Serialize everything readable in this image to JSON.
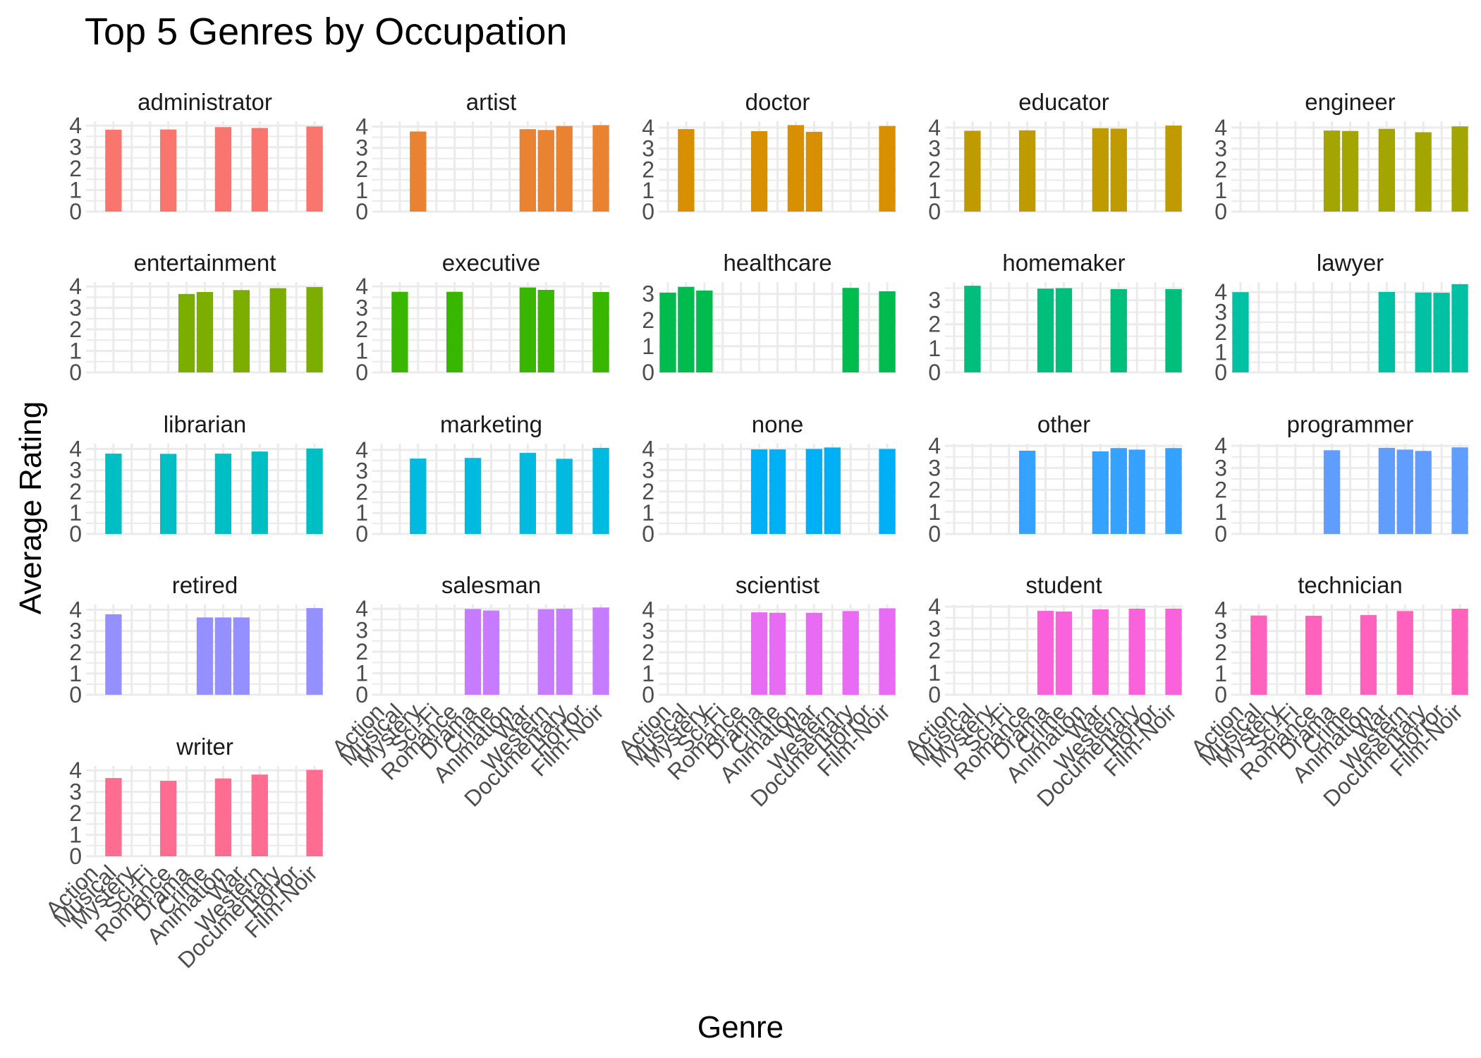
{
  "chart_data": {
    "type": "bar",
    "title": "Top 5 Genres by Occupation",
    "xlabel": "Genre",
    "ylabel": "Average Rating",
    "categories": [
      "Action",
      "Musical",
      "Mystery",
      "Sci-Fi",
      "Romance",
      "Drama",
      "Crime",
      "Animation",
      "War",
      "Western",
      "Documentary",
      "Horror",
      "Film-Noir"
    ],
    "grid": true,
    "legend": "none",
    "layout": {
      "columns": 5
    },
    "panels": [
      {
        "name": "administrator",
        "color": "#F8766D",
        "ylim": [
          0,
          4.2
        ],
        "ticks": [
          0,
          1,
          2,
          3,
          4
        ],
        "values": {
          "Musical": 3.81,
          "Romance": 3.82,
          "Animation": 3.93,
          "Western": 3.89,
          "Film-Noir": 3.96
        }
      },
      {
        "name": "artist",
        "color": "#EA8331",
        "ylim": [
          0,
          4.25
        ],
        "ticks": [
          0,
          1,
          2,
          3,
          4
        ],
        "values": {
          "Mystery": 3.77,
          "War": 3.88,
          "Western": 3.84,
          "Documentary": 4.03,
          "Film-Noir": 4.07
        }
      },
      {
        "name": "doctor",
        "color": "#D89000",
        "ylim": [
          0,
          4.3
        ],
        "ticks": [
          0,
          1,
          2,
          3,
          4
        ],
        "values": {
          "Musical": 3.93,
          "Drama": 3.83,
          "Animation": 4.12,
          "War": 3.8,
          "Film-Noir": 4.08
        }
      },
      {
        "name": "educator",
        "color": "#C09B00",
        "ylim": [
          0,
          4.3
        ],
        "ticks": [
          0,
          1,
          2,
          3,
          4
        ],
        "values": {
          "Musical": 3.85,
          "Romance": 3.87,
          "War": 3.97,
          "Western": 3.95,
          "Film-Noir": 4.1
        }
      },
      {
        "name": "engineer",
        "color": "#A3A500",
        "ylim": [
          0,
          4.3
        ],
        "ticks": [
          0,
          1,
          2,
          3,
          4
        ],
        "values": {
          "Drama": 3.86,
          "Crime": 3.84,
          "War": 3.94,
          "Documentary": 3.78,
          "Film-Noir": 4.06
        }
      },
      {
        "name": "entertainment",
        "color": "#7CAE00",
        "ylim": [
          0,
          4.2
        ],
        "ticks": [
          0,
          1,
          2,
          3,
          4
        ],
        "values": {
          "Drama": 3.65,
          "Crime": 3.74,
          "War": 3.83,
          "Documentary": 3.92,
          "Film-Noir": 3.97
        }
      },
      {
        "name": "executive",
        "color": "#39B600",
        "ylim": [
          0,
          4.2
        ],
        "ticks": [
          0,
          1,
          2,
          3,
          4
        ],
        "values": {
          "Musical": 3.75,
          "Romance": 3.75,
          "War": 3.95,
          "Western": 3.84,
          "Film-Noir": 3.74
        }
      },
      {
        "name": "healthcare",
        "color": "#00BB4E",
        "ylim": [
          0,
          3.45
        ],
        "ticks": [
          0,
          1,
          2,
          3
        ],
        "values": {
          "Action": 3.05,
          "Musical": 3.27,
          "Mystery": 3.13,
          "Documentary": 3.23,
          "Film-Noir": 3.1
        }
      },
      {
        "name": "homemaker",
        "color": "#00BF7D",
        "ylim": [
          0,
          3.75
        ],
        "ticks": [
          0,
          1,
          2,
          3
        ],
        "values": {
          "Musical": 3.6,
          "Drama": 3.48,
          "Crime": 3.5,
          "Western": 3.46,
          "Film-Noir": 3.46
        }
      },
      {
        "name": "lawyer",
        "color": "#00C1A3",
        "ylim": [
          0,
          4.5
        ],
        "ticks": [
          0,
          1,
          2,
          3,
          4
        ],
        "values": {
          "Action": 4.0,
          "War": 4.01,
          "Documentary": 3.98,
          "Horror": 3.97,
          "Film-Noir": 4.4
        }
      },
      {
        "name": "librarian",
        "color": "#00BFC4",
        "ylim": [
          0,
          4.25
        ],
        "ticks": [
          0,
          1,
          2,
          3,
          4
        ],
        "values": {
          "Musical": 3.78,
          "Romance": 3.77,
          "Animation": 3.78,
          "Western": 3.88,
          "Film-Noir": 4.02
        }
      },
      {
        "name": "marketing",
        "color": "#00BAE0",
        "ylim": [
          0,
          4.3
        ],
        "ticks": [
          0,
          1,
          2,
          3,
          4
        ],
        "values": {
          "Mystery": 3.59,
          "Drama": 3.62,
          "War": 3.86,
          "Documentary": 3.58,
          "Film-Noir": 4.1
        }
      },
      {
        "name": "none",
        "color": "#00B0F6",
        "ylim": [
          0,
          4.25
        ],
        "ticks": [
          0,
          1,
          2,
          3,
          4
        ],
        "values": {
          "Drama": 3.98,
          "Crime": 3.98,
          "War": 4.0,
          "Western": 4.07,
          "Film-Noir": 4.0
        }
      },
      {
        "name": "other",
        "color": "#35A2FF",
        "ylim": [
          0,
          4.1
        ],
        "ticks": [
          0,
          1,
          2,
          3,
          4
        ],
        "values": {
          "Romance": 3.78,
          "War": 3.75,
          "Western": 3.9,
          "Documentary": 3.83,
          "Film-Noir": 3.9
        }
      },
      {
        "name": "programmer",
        "color": "#619CFF",
        "ylim": [
          0,
          4.1
        ],
        "ticks": [
          0,
          1,
          2,
          3,
          4
        ],
        "values": {
          "Drama": 3.8,
          "War": 3.91,
          "Western": 3.83,
          "Documentary": 3.77,
          "Film-Noir": 3.93
        }
      },
      {
        "name": "retired",
        "color": "#9590FF",
        "ylim": [
          0,
          4.25
        ],
        "ticks": [
          0,
          1,
          2,
          3,
          4
        ],
        "values": {
          "Musical": 3.79,
          "Crime": 3.64,
          "Animation": 3.64,
          "War": 3.64,
          "Film-Noir": 4.08
        }
      },
      {
        "name": "salesman",
        "color": "#C77CFF",
        "ylim": [
          0,
          4.2
        ],
        "ticks": [
          0,
          1,
          2,
          3,
          4
        ],
        "values": {
          "Drama": 3.99,
          "Crime": 3.92,
          "Western": 3.98,
          "Documentary": 4.0,
          "Film-Noir": 4.06
        }
      },
      {
        "name": "scientist",
        "color": "#E76BF3",
        "ylim": [
          0,
          4.25
        ],
        "ticks": [
          0,
          1,
          2,
          3,
          4
        ],
        "values": {
          "Drama": 3.88,
          "Crime": 3.86,
          "War": 3.86,
          "Documentary": 3.94,
          "Film-Noir": 4.07
        }
      },
      {
        "name": "student",
        "color": "#FA62DB",
        "ylim": [
          0,
          4.1
        ],
        "ticks": [
          0,
          1,
          2,
          3,
          4
        ],
        "values": {
          "Drama": 3.81,
          "Crime": 3.78,
          "War": 3.88,
          "Documentary": 3.91,
          "Film-Noir": 3.91
        }
      },
      {
        "name": "technician",
        "color": "#FF62BC",
        "ylim": [
          0,
          4.25
        ],
        "ticks": [
          0,
          1,
          2,
          3,
          4
        ],
        "values": {
          "Musical": 3.73,
          "Romance": 3.72,
          "Animation": 3.75,
          "Western": 3.94,
          "Film-Noir": 4.05
        }
      },
      {
        "name": "writer",
        "color": "#FF6C91",
        "ylim": [
          0,
          4.2
        ],
        "ticks": [
          0,
          1,
          2,
          3,
          4
        ],
        "values": {
          "Musical": 3.64,
          "Romance": 3.51,
          "Animation": 3.62,
          "Western": 3.8,
          "Film-Noir": 4.02
        }
      }
    ]
  }
}
